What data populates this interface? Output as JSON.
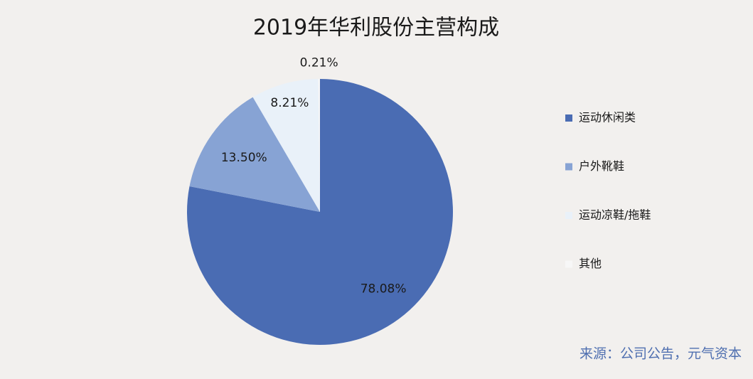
{
  "chart_data": {
    "type": "pie",
    "title": "2019年华利股份主营构成",
    "categories": [
      "运动休闲类",
      "户外靴鞋",
      "运动凉鞋/拖鞋",
      "其他"
    ],
    "values": [
      78.08,
      13.5,
      8.21,
      0.21
    ],
    "value_labels": [
      "78.08%",
      "13.50%",
      "8.21%",
      "0.21%"
    ],
    "colors": [
      "#4a6cb3",
      "#87a3d4",
      "#e9f1f9",
      "#f7f7f7"
    ],
    "legend": "right",
    "source": "来源：公司公告，元气资本"
  }
}
